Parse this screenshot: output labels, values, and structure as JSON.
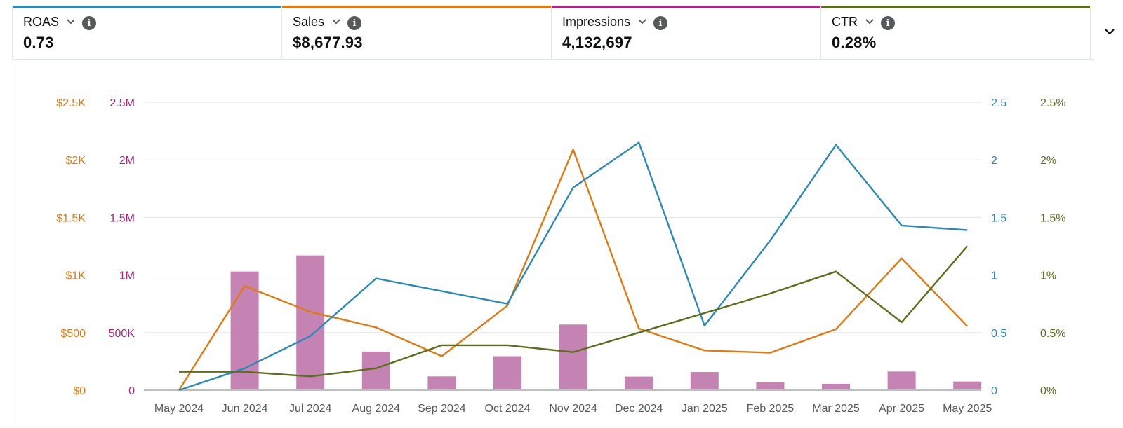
{
  "metrics": [
    {
      "label": "ROAS",
      "value": "0.73",
      "color": "#2a8ab8"
    },
    {
      "label": "Sales",
      "value": "$8,677.93",
      "color": "#e07a10"
    },
    {
      "label": "Impressions",
      "value": "4,132,697",
      "color": "#a8287e"
    },
    {
      "label": "CTR",
      "value": "0.28%",
      "color": "#5b6e1a"
    }
  ],
  "icons": {
    "dropdown": "chevron-down-icon",
    "info": "info-icon",
    "expand": "chevron-down-icon"
  },
  "chart_data": {
    "type": "bar+line",
    "categories": [
      "May 2024",
      "Jun 2024",
      "Jul 2024",
      "Aug 2024",
      "Sep 2024",
      "Oct 2024",
      "Nov 2024",
      "Dec 2024",
      "Jan 2025",
      "Feb 2025",
      "Mar 2025",
      "Apr 2025",
      "May 2025"
    ],
    "grid": true,
    "axes": {
      "sales": {
        "side": "left-outer",
        "color": "#e07a10",
        "ylim": [
          0,
          2500
        ],
        "ticks": [
          "$0",
          "$500",
          "$1K",
          "$1.5K",
          "$2K",
          "$2.5K"
        ]
      },
      "impressions": {
        "side": "left-inner",
        "color": "#a8287e",
        "ylim": [
          0,
          2500000
        ],
        "ticks": [
          "0",
          "500K",
          "1M",
          "1.5M",
          "2M",
          "2.5M"
        ]
      },
      "roas": {
        "side": "right-inner",
        "color": "#2a8ab8",
        "ylim": [
          0,
          2.5
        ],
        "ticks": [
          "0",
          "0.5",
          "1",
          "1.5",
          "2",
          "2.5"
        ]
      },
      "ctr": {
        "side": "right-outer",
        "color": "#5b6e1a",
        "ylim": [
          0,
          2.5
        ],
        "ticks": [
          "0%",
          "0.5%",
          "1%",
          "1.5%",
          "2%",
          "2.5%"
        ]
      }
    },
    "series": [
      {
        "axis": "impressions",
        "type": "bar",
        "color": "#c583b3",
        "values": [
          5000,
          1030000,
          1170000,
          335000,
          120000,
          295000,
          570000,
          118000,
          158000,
          70000,
          55000,
          162000,
          75000
        ]
      },
      {
        "axis": "sales",
        "type": "line",
        "color": "#e07a10",
        "values": [
          0,
          905,
          680,
          545,
          295,
          735,
          2090,
          535,
          345,
          325,
          530,
          1145,
          555
        ]
      },
      {
        "axis": "roas",
        "type": "line",
        "color": "#2a8ab8",
        "values": [
          0,
          0.19,
          0.47,
          0.97,
          0.86,
          0.75,
          1.76,
          2.15,
          0.56,
          1.3,
          2.13,
          1.43,
          1.39
        ]
      },
      {
        "axis": "ctr",
        "type": "line",
        "color": "#5b6e1a",
        "values": [
          0.16,
          0.16,
          0.12,
          0.19,
          0.39,
          0.39,
          0.33,
          0.5,
          0.67,
          0.84,
          1.03,
          0.59,
          1.25
        ]
      }
    ]
  }
}
